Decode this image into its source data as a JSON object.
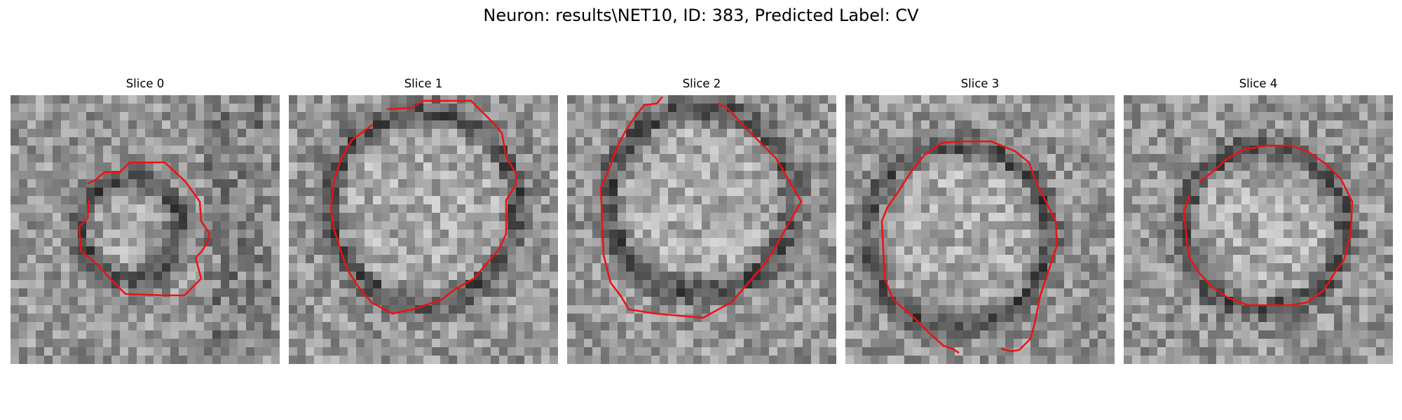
{
  "figure": {
    "title": "Neuron: results\\NET10, ID: 383, Predicted Label: CV"
  },
  "colors": {
    "contour": "#ee1111",
    "background": "#ffffff"
  },
  "panels": [
    {
      "label": "Slice 0"
    },
    {
      "label": "Slice 1"
    },
    {
      "label": "Slice 2"
    },
    {
      "label": "Slice 3"
    },
    {
      "label": "Slice 4"
    }
  ]
}
